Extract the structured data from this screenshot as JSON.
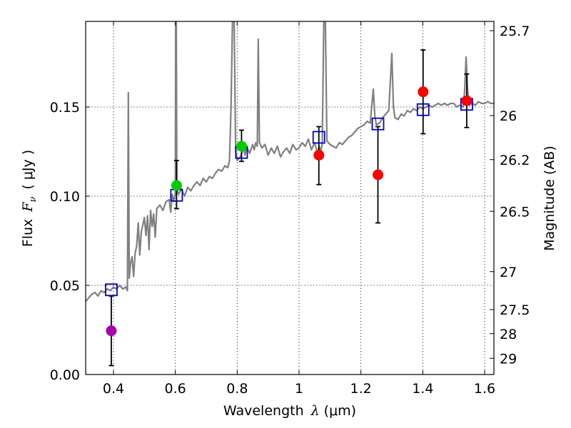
{
  "chart_data": {
    "type": "scatter",
    "title": "",
    "xlabel_text": "Wavelength",
    "xlabel_symbol": "λ",
    "xlabel_unit": "(μm)",
    "ylabel_text": "Flux",
    "ylabel_symbol": "F",
    "ylabel_subscript": "ν",
    "ylabel_unit": "( μJy )",
    "y2label": "Magnitude (AB)",
    "xlim": [
      0.31,
      1.63
    ],
    "ylim": [
      0.0,
      0.198
    ],
    "grid": "dotted",
    "x_ticks": [
      {
        "value": 0.4,
        "label": "0.4"
      },
      {
        "value": 0.6,
        "label": "0.6"
      },
      {
        "value": 0.8,
        "label": "0.8"
      },
      {
        "value": 1.0,
        "label": "1"
      },
      {
        "value": 1.2,
        "label": "1.2"
      },
      {
        "value": 1.4,
        "label": "1.4"
      },
      {
        "value": 1.6,
        "label": "1.6"
      }
    ],
    "y_ticks": [
      {
        "value": 0.0,
        "label": "0.00"
      },
      {
        "value": 0.05,
        "label": "0.05"
      },
      {
        "value": 0.1,
        "label": "0.10"
      },
      {
        "value": 0.15,
        "label": "0.15"
      }
    ],
    "y2_ticks": [
      {
        "flux": 0.1928,
        "label": "25.7"
      },
      {
        "flux": 0.1452,
        "label": "26"
      },
      {
        "flux": 0.1205,
        "label": "26.2"
      },
      {
        "flux": 0.0915,
        "label": "26.5"
      },
      {
        "flux": 0.0577,
        "label": "27"
      },
      {
        "flux": 0.0364,
        "label": "27.5"
      },
      {
        "flux": 0.0229,
        "label": "28"
      },
      {
        "flux": 0.0091,
        "label": "29"
      }
    ],
    "model_spectrum": {
      "name": "model SED",
      "color": "#808080",
      "points": [
        [
          0.31,
          0.041
        ],
        [
          0.32,
          0.043
        ],
        [
          0.33,
          0.045
        ],
        [
          0.34,
          0.046
        ],
        [
          0.35,
          0.044
        ],
        [
          0.36,
          0.047
        ],
        [
          0.37,
          0.046
        ],
        [
          0.38,
          0.048
        ],
        [
          0.39,
          0.047
        ],
        [
          0.4,
          0.049
        ],
        [
          0.41,
          0.048
        ],
        [
          0.42,
          0.05
        ],
        [
          0.43,
          0.048
        ],
        [
          0.44,
          0.049
        ],
        [
          0.445,
          0.047
        ],
        [
          0.448,
          0.158
        ],
        [
          0.451,
          0.054
        ],
        [
          0.455,
          0.062
        ],
        [
          0.46,
          0.066
        ],
        [
          0.465,
          0.055
        ],
        [
          0.47,
          0.068
        ],
        [
          0.475,
          0.072
        ],
        [
          0.48,
          0.085
        ],
        [
          0.485,
          0.067
        ],
        [
          0.49,
          0.08
        ],
        [
          0.5,
          0.088
        ],
        [
          0.505,
          0.078
        ],
        [
          0.51,
          0.089
        ],
        [
          0.515,
          0.07
        ],
        [
          0.52,
          0.092
        ],
        [
          0.525,
          0.083
        ],
        [
          0.53,
          0.09
        ],
        [
          0.535,
          0.077
        ],
        [
          0.54,
          0.093
        ],
        [
          0.55,
          0.095
        ],
        [
          0.56,
          0.092
        ],
        [
          0.57,
          0.097
        ],
        [
          0.58,
          0.098
        ],
        [
          0.585,
          0.091
        ],
        [
          0.59,
          0.101
        ],
        [
          0.595,
          0.097
        ],
        [
          0.6,
          0.102
        ],
        [
          0.601,
          0.2
        ],
        [
          0.603,
          0.2
        ],
        [
          0.605,
          0.105
        ],
        [
          0.61,
          0.101
        ],
        [
          0.62,
          0.104
        ],
        [
          0.63,
          0.1
        ],
        [
          0.64,
          0.105
        ],
        [
          0.65,
          0.103
        ],
        [
          0.66,
          0.106
        ],
        [
          0.67,
          0.108
        ],
        [
          0.68,
          0.106
        ],
        [
          0.69,
          0.11
        ],
        [
          0.7,
          0.108
        ],
        [
          0.71,
          0.111
        ],
        [
          0.72,
          0.11
        ],
        [
          0.73,
          0.113
        ],
        [
          0.74,
          0.115
        ],
        [
          0.75,
          0.114
        ],
        [
          0.76,
          0.117
        ],
        [
          0.77,
          0.116
        ],
        [
          0.775,
          0.12
        ],
        [
          0.78,
          0.15
        ],
        [
          0.785,
          0.2
        ],
        [
          0.79,
          0.2
        ],
        [
          0.795,
          0.125
        ],
        [
          0.8,
          0.12
        ],
        [
          0.81,
          0.122
        ],
        [
          0.82,
          0.127
        ],
        [
          0.825,
          0.123
        ],
        [
          0.83,
          0.128
        ],
        [
          0.84,
          0.124
        ],
        [
          0.85,
          0.129
        ],
        [
          0.855,
          0.126
        ],
        [
          0.86,
          0.13
        ],
        [
          0.865,
          0.128
        ],
        [
          0.868,
          0.188
        ],
        [
          0.872,
          0.13
        ],
        [
          0.88,
          0.127
        ],
        [
          0.89,
          0.129
        ],
        [
          0.9,
          0.123
        ],
        [
          0.91,
          0.127
        ],
        [
          0.92,
          0.124
        ],
        [
          0.93,
          0.128
        ],
        [
          0.94,
          0.122
        ],
        [
          0.95,
          0.125
        ],
        [
          0.96,
          0.127
        ],
        [
          0.97,
          0.124
        ],
        [
          0.98,
          0.129
        ],
        [
          0.99,
          0.126
        ],
        [
          1.0,
          0.127
        ],
        [
          1.01,
          0.13
        ],
        [
          1.02,
          0.128
        ],
        [
          1.03,
          0.132
        ],
        [
          1.04,
          0.126
        ],
        [
          1.05,
          0.13
        ],
        [
          1.06,
          0.124
        ],
        [
          1.065,
          0.128
        ],
        [
          1.07,
          0.125
        ],
        [
          1.075,
          0.129
        ],
        [
          1.08,
          0.2
        ],
        [
          1.085,
          0.2
        ],
        [
          1.09,
          0.131
        ],
        [
          1.1,
          0.129
        ],
        [
          1.11,
          0.128
        ],
        [
          1.12,
          0.127
        ],
        [
          1.13,
          0.13
        ],
        [
          1.14,
          0.129
        ],
        [
          1.15,
          0.131
        ],
        [
          1.16,
          0.133
        ],
        [
          1.17,
          0.134
        ],
        [
          1.18,
          0.136
        ],
        [
          1.19,
          0.138
        ],
        [
          1.2,
          0.139
        ],
        [
          1.21,
          0.14
        ],
        [
          1.22,
          0.142
        ],
        [
          1.23,
          0.141
        ],
        [
          1.24,
          0.16
        ],
        [
          1.245,
          0.145
        ],
        [
          1.25,
          0.14
        ],
        [
          1.26,
          0.141
        ],
        [
          1.27,
          0.144
        ],
        [
          1.28,
          0.146
        ],
        [
          1.29,
          0.148
        ],
        [
          1.3,
          0.18
        ],
        [
          1.305,
          0.15
        ],
        [
          1.31,
          0.144
        ],
        [
          1.32,
          0.143
        ],
        [
          1.33,
          0.146
        ],
        [
          1.34,
          0.145
        ],
        [
          1.35,
          0.148
        ],
        [
          1.36,
          0.147
        ],
        [
          1.37,
          0.149
        ],
        [
          1.38,
          0.148
        ],
        [
          1.39,
          0.15
        ],
        [
          1.4,
          0.149
        ],
        [
          1.41,
          0.15
        ],
        [
          1.42,
          0.151
        ],
        [
          1.43,
          0.15
        ],
        [
          1.44,
          0.151
        ],
        [
          1.45,
          0.152
        ],
        [
          1.46,
          0.151
        ],
        [
          1.47,
          0.152
        ],
        [
          1.48,
          0.151
        ],
        [
          1.49,
          0.152
        ],
        [
          1.5,
          0.152
        ],
        [
          1.51,
          0.15
        ],
        [
          1.52,
          0.151
        ],
        [
          1.53,
          0.15
        ],
        [
          1.535,
          0.158
        ],
        [
          1.54,
          0.178
        ],
        [
          1.545,
          0.16
        ],
        [
          1.55,
          0.151
        ],
        [
          1.56,
          0.152
        ],
        [
          1.57,
          0.151
        ],
        [
          1.58,
          0.153
        ],
        [
          1.59,
          0.152
        ],
        [
          1.6,
          0.152
        ],
        [
          1.61,
          0.153
        ],
        [
          1.62,
          0.152
        ],
        [
          1.63,
          0.152
        ]
      ]
    },
    "model_photometry": {
      "name": "model band fluxes",
      "color": "#0000cc",
      "marker": "open-square",
      "points": [
        {
          "x": 0.393,
          "y": 0.0475
        },
        {
          "x": 0.604,
          "y": 0.1005
        },
        {
          "x": 0.814,
          "y": 0.1245
        },
        {
          "x": 1.064,
          "y": 0.133
        },
        {
          "x": 1.255,
          "y": 0.1405
        },
        {
          "x": 1.401,
          "y": 0.1485
        },
        {
          "x": 1.542,
          "y": 0.1515
        }
      ]
    },
    "observations": {
      "name": "observed photometry",
      "points": [
        {
          "x": 0.393,
          "y": 0.0245,
          "err_low": 0.0195,
          "err_high": 0.0195,
          "color": "#aa00aa"
        },
        {
          "x": 0.604,
          "y": 0.106,
          "err_low": 0.013,
          "err_high": 0.014,
          "color": "#00cc00"
        },
        {
          "x": 0.814,
          "y": 0.128,
          "err_low": 0.0085,
          "err_high": 0.009,
          "color": "#00cc00"
        },
        {
          "x": 1.064,
          "y": 0.123,
          "err_low": 0.0165,
          "err_high": 0.016,
          "color": "#ff0000"
        },
        {
          "x": 1.255,
          "y": 0.112,
          "err_low": 0.027,
          "err_high": 0.027,
          "color": "#ff0000"
        },
        {
          "x": 1.401,
          "y": 0.1585,
          "err_low": 0.0235,
          "err_high": 0.0235,
          "color": "#ff0000"
        },
        {
          "x": 1.542,
          "y": 0.1535,
          "err_low": 0.015,
          "err_high": 0.015,
          "color": "#ff0000"
        }
      ]
    }
  }
}
